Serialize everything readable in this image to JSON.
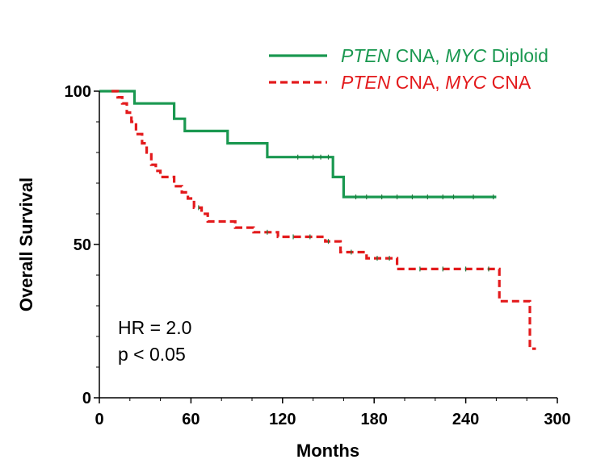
{
  "chart_data": {
    "type": "line",
    "title": "",
    "xlabel": "Months",
    "ylabel": "Overall Survival",
    "xlim": [
      0,
      300
    ],
    "ylim": [
      0,
      100
    ],
    "x_ticks": [
      0,
      60,
      120,
      180,
      240,
      300
    ],
    "y_ticks": [
      0,
      50,
      100
    ],
    "grid": false,
    "legend_position": "top-right",
    "series": [
      {
        "name_parts": [
          {
            "text": "PTEN",
            "italic": true
          },
          {
            "text": " CNA, ",
            "italic": false
          },
          {
            "text": "MYC",
            "italic": true
          },
          {
            "text": " Diploid",
            "italic": false
          }
        ],
        "color": "#1a9850",
        "dash": "solid",
        "x": [
          0,
          23,
          23,
          49,
          49,
          56,
          56,
          84,
          84,
          110,
          110,
          153,
          153,
          160,
          160,
          260
        ],
        "y": [
          100,
          100,
          96,
          96,
          91,
          91,
          87,
          87,
          83,
          83,
          78.5,
          78.5,
          72,
          72,
          65.5,
          65.5
        ],
        "censor_x": [
          130,
          140,
          145,
          150,
          168,
          175,
          185,
          195,
          205,
          215,
          225,
          232,
          245,
          258
        ]
      },
      {
        "name_parts": [
          {
            "text": "PTEN",
            "italic": true
          },
          {
            "text": " CNA, ",
            "italic": false
          },
          {
            "text": "MYC",
            "italic": true
          },
          {
            "text": " CNA",
            "italic": false
          }
        ],
        "color": "#e31a1c",
        "dash": "dashed",
        "x": [
          8,
          12,
          12,
          15,
          15,
          18,
          18,
          21,
          21,
          24,
          24,
          28,
          28,
          31,
          31,
          34,
          34,
          37,
          37,
          40,
          40,
          43,
          43,
          49,
          49,
          54,
          54,
          58,
          58,
          62,
          62,
          67,
          67,
          71,
          71,
          76,
          76,
          89,
          89,
          101,
          101,
          117,
          117,
          148,
          148,
          158,
          158,
          175,
          175,
          195,
          195,
          262,
          262,
          282,
          282,
          286
        ],
        "y": [
          100,
          100,
          98,
          98,
          96,
          96,
          93,
          93,
          90,
          90,
          86,
          86,
          83,
          83,
          80,
          80,
          76,
          76,
          74,
          74,
          72,
          72,
          72,
          72,
          69,
          69,
          67,
          67,
          65,
          65,
          62,
          62,
          60,
          60,
          57.5,
          57.5,
          57.5,
          57.5,
          55.5,
          55.5,
          54,
          54,
          52.5,
          52.5,
          51,
          51,
          47.5,
          47.5,
          45.5,
          45.5,
          42,
          42,
          31.5,
          31.5,
          16,
          16
        ],
        "censor_x": [
          65,
          110,
          127,
          138,
          150,
          165,
          182,
          190,
          210,
          225,
          240,
          255
        ]
      }
    ],
    "annotations": [
      "HR = 2.0",
      "p < 0.05"
    ]
  }
}
